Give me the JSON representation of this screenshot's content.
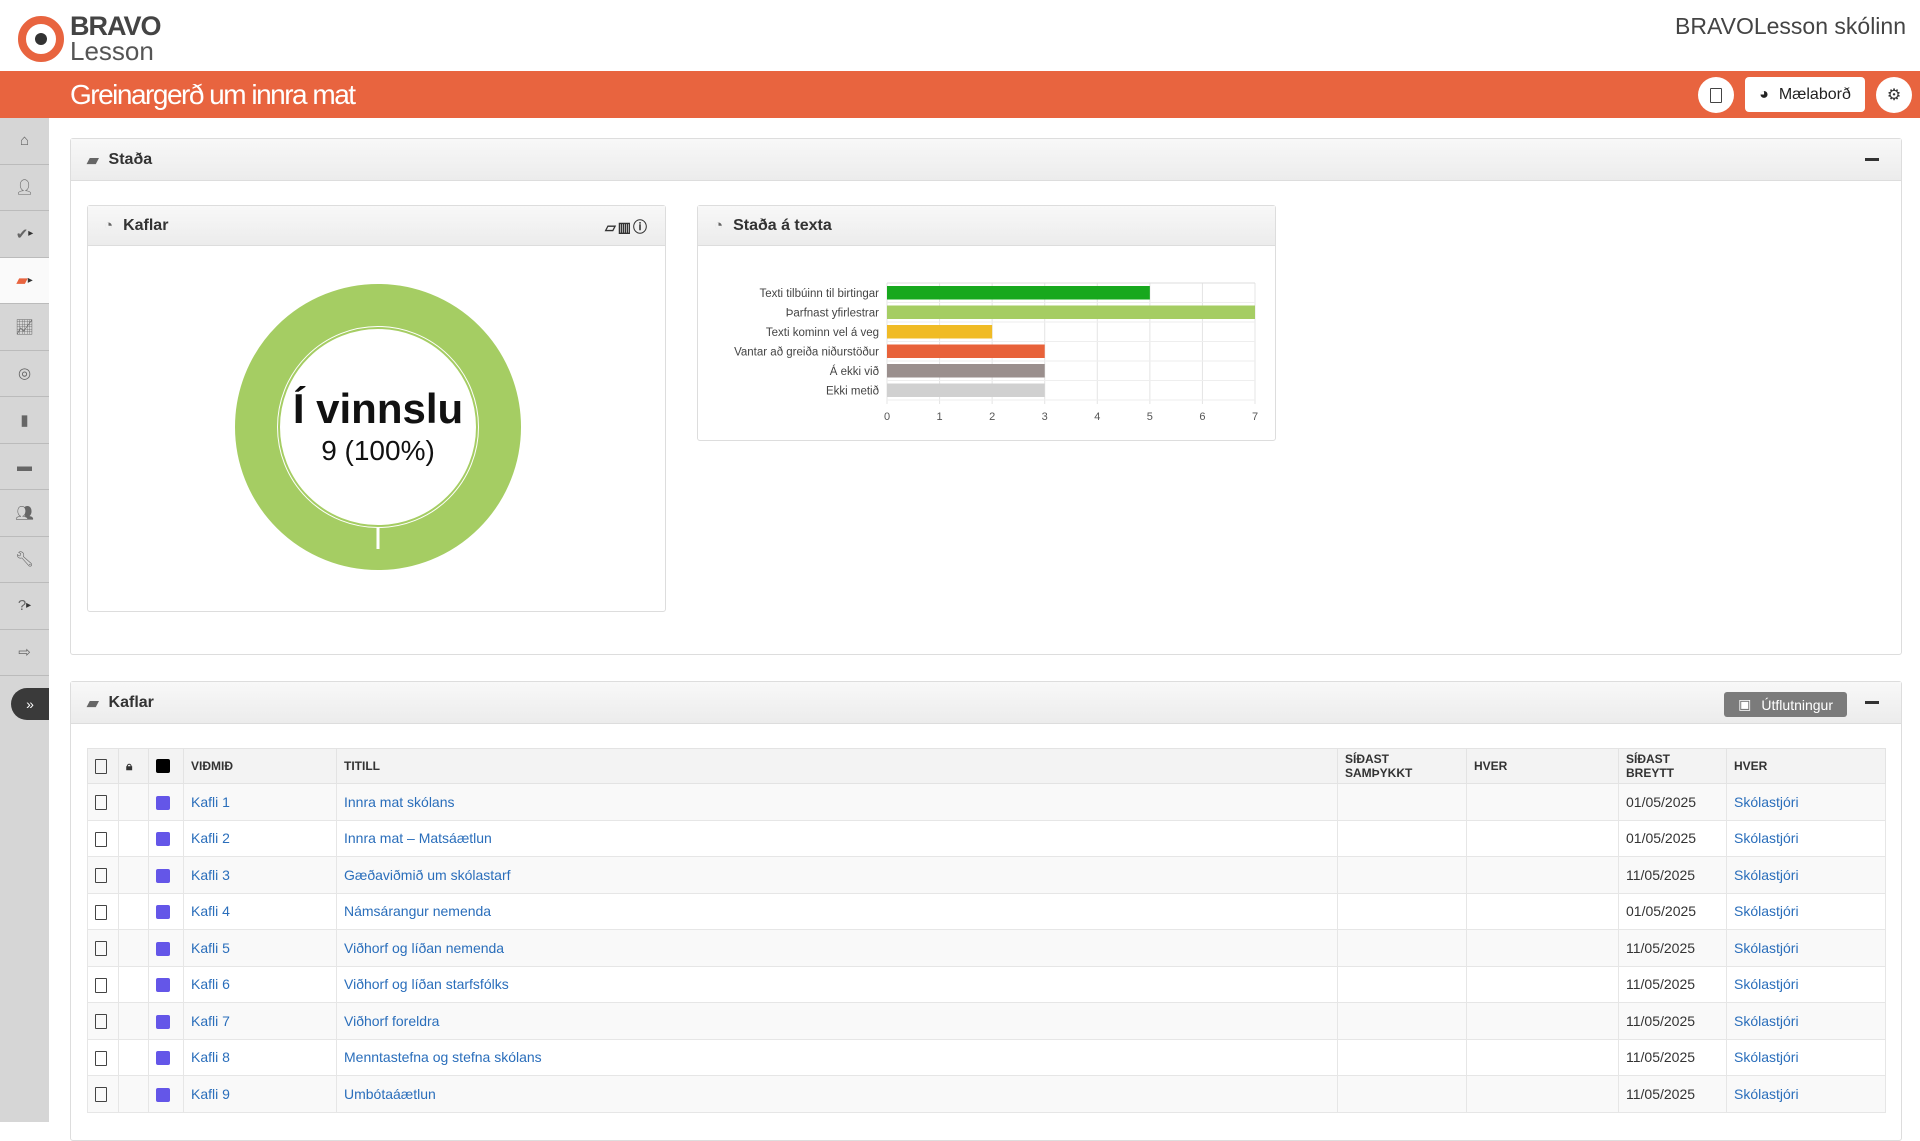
{
  "app": {
    "logo_top": "BRAVO",
    "logo_bottom": "Lesson",
    "school": "BRAVOLesson skólinn",
    "page_title": "Greinargerð um innra mat",
    "dashboard_button": "Mælaborð",
    "accent": "#e8643f"
  },
  "sidebar": {
    "items": [
      {
        "icon": "home-icon"
      },
      {
        "icon": "user-icon"
      },
      {
        "icon": "check-icon",
        "submenu": true
      },
      {
        "icon": "book-icon",
        "active": true,
        "submenu": true
      },
      {
        "icon": "chart-line-icon"
      },
      {
        "icon": "target-icon"
      },
      {
        "icon": "file-icon"
      },
      {
        "icon": "folder-icon"
      },
      {
        "icon": "users-icon"
      },
      {
        "icon": "wrench-icon"
      },
      {
        "icon": "question-icon",
        "submenu": true
      },
      {
        "icon": "sign-out-icon"
      }
    ]
  },
  "status_panel": {
    "title": "Staða",
    "chapters_card": {
      "title": "Kaflar",
      "donut_label": "Í vinnslu",
      "donut_value": "9 (100%)",
      "donut_color": "#a5cd63"
    },
    "text_card": {
      "title": "Staða á texta"
    }
  },
  "chart_data": {
    "type": "bar",
    "orientation": "horizontal",
    "categories": [
      "Texti tilbúinn til birtingar",
      "Þarfnast yfirlestrar",
      "Texti kominn vel á veg",
      "Vantar að greiða niðurstöður",
      "Á ekki við",
      "Ekki metið"
    ],
    "values": [
      5,
      7,
      2,
      3,
      3,
      3
    ],
    "colors": [
      "#17a81d",
      "#a5cd63",
      "#f0bb25",
      "#e8623a",
      "#9a8f8d",
      "#d0d0d0"
    ],
    "xlim": [
      0,
      7
    ],
    "xticks": [
      "0",
      "1",
      "2",
      "3",
      "4",
      "5",
      "6",
      "7"
    ],
    "grid": true
  },
  "chapters_panel": {
    "title": "Kaflar",
    "export_label": "Útflutningur",
    "columns": [
      "VIÐMIÐ",
      "TITILL",
      "SÍÐAST SAMÞYKKT",
      "HVER",
      "SÍÐAST BREYTT",
      "HVER"
    ],
    "rows": [
      {
        "criterion": "Kafli 1",
        "title": "Innra mat skólans",
        "approved": "",
        "approved_by": "",
        "changed": "01/05/2025",
        "changed_by": "Skólastjóri"
      },
      {
        "criterion": "Kafli 2",
        "title": "Innra mat – Matsáætlun",
        "approved": "",
        "approved_by": "",
        "changed": "01/05/2025",
        "changed_by": "Skólastjóri"
      },
      {
        "criterion": "Kafli 3",
        "title": "Gæðaviðmið um skólastarf",
        "approved": "",
        "approved_by": "",
        "changed": "11/05/2025",
        "changed_by": "Skólastjóri"
      },
      {
        "criterion": "Kafli 4",
        "title": "Námsárangur nemenda",
        "approved": "",
        "approved_by": "",
        "changed": "01/05/2025",
        "changed_by": "Skólastjóri"
      },
      {
        "criterion": "Kafli 5",
        "title": "Viðhorf og líðan nemenda",
        "approved": "",
        "approved_by": "",
        "changed": "11/05/2025",
        "changed_by": "Skólastjóri"
      },
      {
        "criterion": "Kafli 6",
        "title": "Viðhorf og líðan starfsfólks",
        "approved": "",
        "approved_by": "",
        "changed": "11/05/2025",
        "changed_by": "Skólastjóri"
      },
      {
        "criterion": "Kafli 7",
        "title": "Viðhorf foreldra",
        "approved": "",
        "approved_by": "",
        "changed": "11/05/2025",
        "changed_by": "Skólastjóri"
      },
      {
        "criterion": "Kafli 8",
        "title": "Menntastefna og stefna skólans",
        "approved": "",
        "approved_by": "",
        "changed": "11/05/2025",
        "changed_by": "Skólastjóri"
      },
      {
        "criterion": "Kafli 9",
        "title": "Umbótaáætlun",
        "approved": "",
        "approved_by": "",
        "changed": "11/05/2025",
        "changed_by": "Skólastjóri"
      }
    ]
  }
}
